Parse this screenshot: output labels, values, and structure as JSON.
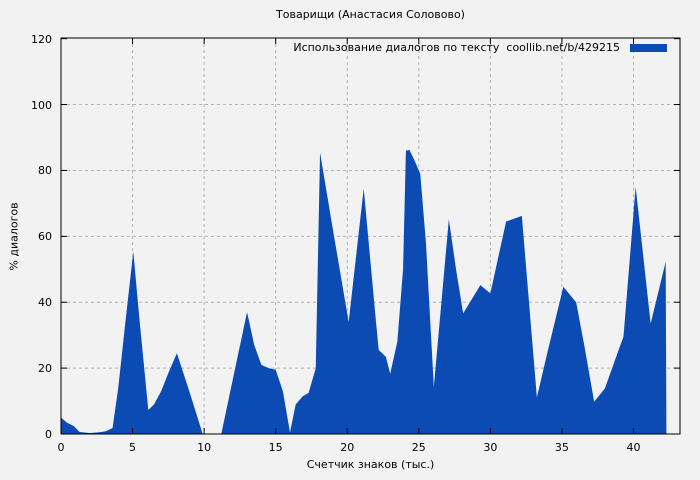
{
  "chart_data": {
    "type": "area",
    "title": "Товарищи (Анастасия Соловово)",
    "legend": {
      "label": "Использование диалогов по тексту  coollib.net/b/429215",
      "position": "top-right-inside"
    },
    "xlabel": "Счетчик знаков (тыс.)",
    "ylabel": "% диалогов",
    "xlim": [
      0,
      43.25
    ],
    "ylim": [
      0,
      120.2
    ],
    "xticks": [
      0,
      5,
      10,
      15,
      20,
      25,
      30,
      35,
      40
    ],
    "yticks": [
      0,
      20,
      40,
      60,
      80,
      100,
      120
    ],
    "grid": true,
    "colors": {
      "fill": "#0c4ab4",
      "background": "#f2f2f2",
      "grid": "#b3b3b3",
      "axis": "#000000"
    },
    "series": [
      {
        "name": "Использование диалогов по тексту  coollib.net/b/429215",
        "points": [
          [
            0,
            5
          ],
          [
            0.4,
            3.5
          ],
          [
            0.9,
            2.4
          ],
          [
            1.3,
            0.6
          ],
          [
            2,
            0.3
          ],
          [
            2.6,
            0.5
          ],
          [
            3.1,
            0.8
          ],
          [
            3.6,
            1.8
          ],
          [
            4,
            14
          ],
          [
            4.5,
            34
          ],
          [
            5.05,
            55.3
          ],
          [
            5.5,
            34
          ],
          [
            6.1,
            7.3
          ],
          [
            6.5,
            9
          ],
          [
            7,
            13
          ],
          [
            7.5,
            18.5
          ],
          [
            8.1,
            24.5
          ],
          [
            9,
            12.5
          ],
          [
            9.9,
            0
          ],
          [
            11.2,
            0
          ],
          [
            12,
            16.5
          ],
          [
            13,
            37
          ],
          [
            13.5,
            27
          ],
          [
            14,
            21
          ],
          [
            14.5,
            20
          ],
          [
            15,
            19.5
          ],
          [
            15.5,
            13
          ],
          [
            16,
            0.5
          ],
          [
            16.4,
            9
          ],
          [
            16.9,
            11.5
          ],
          [
            17.3,
            12.5
          ],
          [
            17.8,
            20
          ],
          [
            18.1,
            85.4
          ],
          [
            19,
            62
          ],
          [
            20.1,
            34
          ],
          [
            21.15,
            74.5
          ],
          [
            22,
            34.5
          ],
          [
            22.2,
            25.5
          ],
          [
            22.7,
            23.4
          ],
          [
            23,
            18.3
          ],
          [
            23.5,
            28
          ],
          [
            23.9,
            50
          ],
          [
            24.1,
            86
          ],
          [
            24.35,
            86.2
          ],
          [
            24.7,
            83
          ],
          [
            25.1,
            79
          ],
          [
            25.5,
            58
          ],
          [
            26.05,
            14.3
          ],
          [
            27.1,
            65.2
          ],
          [
            27.6,
            50
          ],
          [
            28.1,
            36.6
          ],
          [
            29.3,
            45.2
          ],
          [
            30,
            42.7
          ],
          [
            31.1,
            64.5
          ],
          [
            32.2,
            66.2
          ],
          [
            33.25,
            11.1
          ],
          [
            34,
            25
          ],
          [
            35.1,
            44.7
          ],
          [
            36,
            39.9
          ],
          [
            36.6,
            26
          ],
          [
            37.25,
            9.8
          ],
          [
            38,
            13.8
          ],
          [
            39,
            26
          ],
          [
            39.3,
            29.5
          ],
          [
            40.15,
            75
          ],
          [
            41.2,
            33.5
          ],
          [
            42.25,
            52.3
          ],
          [
            42.3,
            0
          ]
        ]
      }
    ]
  }
}
